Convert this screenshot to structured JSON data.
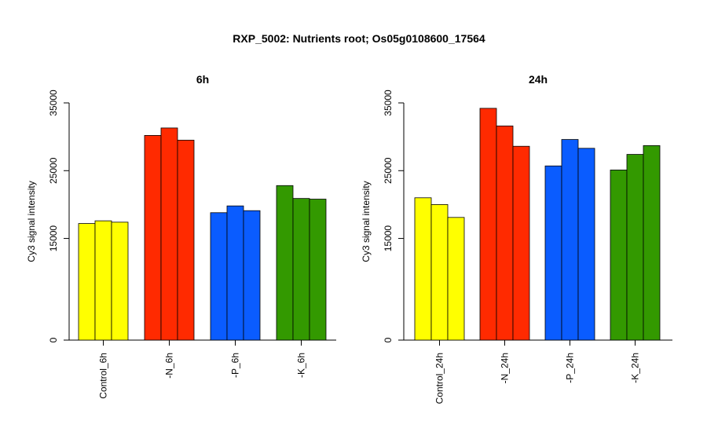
{
  "title": "RXP_5002: Nutrients root; Os05g0108600_17564",
  "chart_data": [
    {
      "type": "bar",
      "title": "6h",
      "ylabel": "Cy3 signal intensity",
      "ylim": [
        0,
        35000
      ],
      "yticks": [
        0,
        15000,
        25000,
        35000
      ],
      "categories": [
        "Control_6h",
        "-N_6h",
        "-P_6h",
        "-K_6h"
      ],
      "groups": [
        {
          "color": "#ffff00",
          "values": [
            17200,
            17600,
            17400
          ]
        },
        {
          "color": "#ff2a00",
          "values": [
            30200,
            31300,
            29500
          ]
        },
        {
          "color": "#0a5cff",
          "values": [
            18800,
            19800,
            19100
          ]
        },
        {
          "color": "#339900",
          "values": [
            22800,
            20900,
            20800
          ]
        }
      ]
    },
    {
      "type": "bar",
      "title": "24h",
      "ylabel": "Cy3 signal intensity",
      "ylim": [
        0,
        35000
      ],
      "yticks": [
        0,
        15000,
        25000,
        35000
      ],
      "categories": [
        "Control_24h",
        "-N_24h",
        "-P_24h",
        "-K_24h"
      ],
      "groups": [
        {
          "color": "#ffff00",
          "values": [
            21000,
            20000,
            18100
          ]
        },
        {
          "color": "#ff2a00",
          "values": [
            34200,
            31600,
            28600
          ]
        },
        {
          "color": "#0a5cff",
          "values": [
            25700,
            29600,
            28300
          ]
        },
        {
          "color": "#339900",
          "values": [
            25100,
            27400,
            28700
          ]
        }
      ]
    }
  ]
}
